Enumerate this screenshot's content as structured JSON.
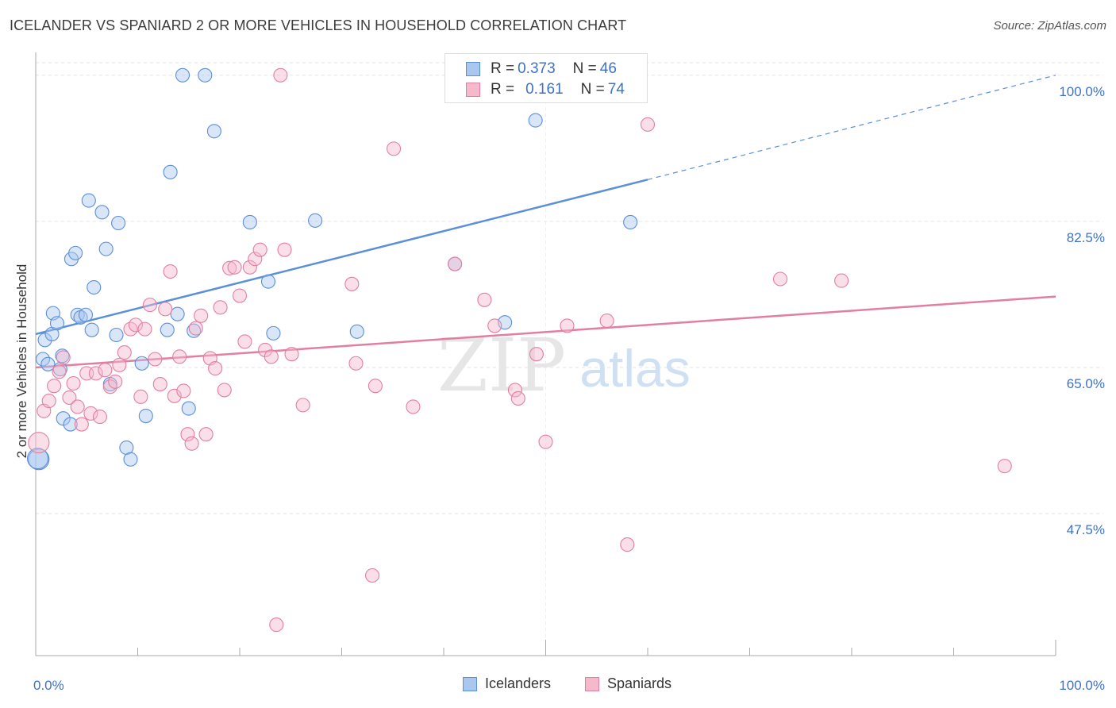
{
  "title": "ICELANDER VS SPANIARD 2 OR MORE VEHICLES IN HOUSEHOLD CORRELATION CHART",
  "source": "Source: ZipAtlas.com",
  "watermark": {
    "zip": "ZIP",
    "atlas": "atlas"
  },
  "legend": [
    {
      "r_label": "R =",
      "r_value": "0.373",
      "n_label": "N =",
      "n_value": "46",
      "color": "#a9c7ef",
      "stroke": "#5b8fd9"
    },
    {
      "r_label": "R =",
      "r_value": "0.161",
      "n_label": "N =",
      "n_value": "74",
      "color": "#f6b8cb",
      "stroke": "#e27fa0"
    }
  ],
  "colors": {
    "icelanders": "#5b8fd9",
    "spaniards": "#e27fa0",
    "axis_text": "#3f72c7"
  },
  "chart_data": {
    "type": "scatter",
    "title": "ICELANDER VS SPANIARD 2 OR MORE VEHICLES IN HOUSEHOLD CORRELATION CHART",
    "xlabel": "",
    "ylabel": "2 or more Vehicles in Household",
    "xlim": [
      0,
      100
    ],
    "ylim": [
      30.5,
      101.5
    ],
    "x_tick_labels": [
      "0.0%",
      "100.0%"
    ],
    "y_ticks": [
      47.5,
      65.0,
      82.5,
      100.0
    ],
    "y_tick_labels": [
      "47.5%",
      "65.0%",
      "82.5%",
      "100.0%"
    ],
    "grid": true,
    "legend_position": "top-center",
    "series": [
      {
        "name": "Icelanders",
        "color": "#5b8fd9",
        "trend": {
          "x0": 0,
          "y0": 69.0,
          "x1": 60,
          "y1": 87.5,
          "dash_to_x": 100,
          "dash_to_y": 100.0
        },
        "points": [
          [
            0.3,
            54.0
          ],
          [
            0.7,
            66.0
          ],
          [
            0.9,
            68.3
          ],
          [
            1.2,
            65.4
          ],
          [
            1.6,
            69.0
          ],
          [
            1.7,
            71.5
          ],
          [
            2.1,
            70.3
          ],
          [
            2.4,
            64.8
          ],
          [
            2.6,
            66.4
          ],
          [
            2.7,
            58.9
          ],
          [
            3.4,
            58.2
          ],
          [
            3.5,
            78.0
          ],
          [
            3.9,
            78.7
          ],
          [
            4.1,
            71.3
          ],
          [
            4.4,
            71.0
          ],
          [
            4.9,
            71.3
          ],
          [
            5.2,
            85.0
          ],
          [
            5.5,
            69.5
          ],
          [
            5.7,
            74.6
          ],
          [
            6.5,
            83.6
          ],
          [
            6.9,
            79.2
          ],
          [
            7.3,
            63.0
          ],
          [
            7.9,
            68.9
          ],
          [
            8.1,
            82.3
          ],
          [
            8.9,
            55.4
          ],
          [
            9.3,
            54.0
          ],
          [
            10.4,
            65.5
          ],
          [
            10.8,
            59.2
          ],
          [
            12.9,
            69.5
          ],
          [
            13.2,
            88.4
          ],
          [
            13.9,
            71.4
          ],
          [
            15.0,
            60.1
          ],
          [
            15.5,
            69.4
          ],
          [
            14.4,
            100.0
          ],
          [
            16.6,
            100.0
          ],
          [
            17.5,
            93.3
          ],
          [
            21.0,
            82.4
          ],
          [
            22.8,
            75.3
          ],
          [
            23.3,
            69.1
          ],
          [
            27.4,
            82.6
          ],
          [
            31.5,
            69.3
          ],
          [
            41.1,
            77.4
          ],
          [
            46.0,
            70.4
          ],
          [
            49.0,
            94.6
          ],
          [
            58.3,
            82.4
          ],
          [
            0.2,
            54.1
          ]
        ]
      },
      {
        "name": "Spaniards",
        "color": "#e27fa0",
        "trend": {
          "x0": 0,
          "y0": 65.0,
          "x1": 100,
          "y1": 73.5
        },
        "points": [
          [
            0.3,
            56.0
          ],
          [
            0.8,
            59.8
          ],
          [
            1.3,
            61.0
          ],
          [
            1.8,
            62.8
          ],
          [
            2.3,
            64.5
          ],
          [
            2.7,
            66.2
          ],
          [
            3.3,
            61.4
          ],
          [
            3.7,
            63.1
          ],
          [
            4.1,
            60.3
          ],
          [
            4.5,
            58.2
          ],
          [
            5.0,
            64.3
          ],
          [
            5.4,
            59.5
          ],
          [
            5.9,
            64.3
          ],
          [
            6.3,
            59.1
          ],
          [
            6.8,
            64.7
          ],
          [
            7.3,
            62.7
          ],
          [
            7.8,
            63.3
          ],
          [
            8.2,
            65.3
          ],
          [
            8.7,
            66.8
          ],
          [
            9.3,
            69.6
          ],
          [
            9.8,
            70.1
          ],
          [
            10.3,
            61.5
          ],
          [
            10.7,
            69.6
          ],
          [
            11.2,
            72.5
          ],
          [
            11.7,
            66.0
          ],
          [
            12.2,
            63.0
          ],
          [
            12.7,
            72.0
          ],
          [
            13.2,
            76.5
          ],
          [
            13.6,
            61.6
          ],
          [
            14.1,
            66.3
          ],
          [
            14.5,
            62.2
          ],
          [
            14.9,
            57.0
          ],
          [
            15.3,
            55.9
          ],
          [
            15.7,
            69.7
          ],
          [
            16.2,
            71.2
          ],
          [
            16.7,
            57.0
          ],
          [
            17.1,
            66.1
          ],
          [
            17.6,
            64.9
          ],
          [
            18.1,
            72.2
          ],
          [
            18.5,
            62.3
          ],
          [
            19.0,
            76.9
          ],
          [
            19.5,
            77.0
          ],
          [
            20.0,
            73.6
          ],
          [
            20.5,
            68.1
          ],
          [
            21.0,
            77.0
          ],
          [
            21.5,
            78.0
          ],
          [
            22.0,
            79.1
          ],
          [
            22.5,
            67.1
          ],
          [
            23.1,
            66.3
          ],
          [
            23.6,
            34.2
          ],
          [
            24.0,
            100.0
          ],
          [
            24.4,
            79.1
          ],
          [
            25.1,
            66.6
          ],
          [
            26.2,
            60.5
          ],
          [
            31.0,
            75.0
          ],
          [
            31.4,
            65.5
          ],
          [
            33.0,
            40.1
          ],
          [
            33.3,
            62.8
          ],
          [
            35.1,
            91.2
          ],
          [
            37.0,
            60.3
          ],
          [
            41.1,
            77.4
          ],
          [
            44.0,
            73.1
          ],
          [
            45.0,
            70.0
          ],
          [
            47.0,
            62.3
          ],
          [
            47.3,
            61.3
          ],
          [
            49.1,
            66.6
          ],
          [
            50.0,
            56.1
          ],
          [
            52.1,
            70.0
          ],
          [
            56.0,
            70.6
          ],
          [
            58.0,
            43.8
          ],
          [
            60.0,
            94.1
          ],
          [
            73.0,
            75.6
          ],
          [
            79.0,
            75.4
          ],
          [
            95.0,
            53.2
          ]
        ]
      }
    ]
  },
  "bottom_legend": [
    {
      "label": "Icelanders",
      "color": "#a9c7ef",
      "stroke": "#5b8fd9"
    },
    {
      "label": "Spaniards",
      "color": "#f6b8cb",
      "stroke": "#e27fa0"
    }
  ]
}
